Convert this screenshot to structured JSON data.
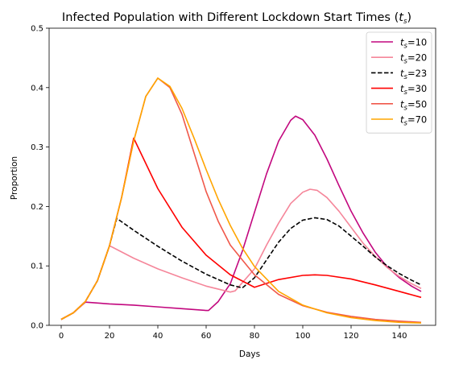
{
  "chart_data": {
    "type": "line",
    "title": "Infected Population with Different Lockdown Start Times",
    "title_math": "t",
    "title_math_sub": "s",
    "xlabel": "Days",
    "ylabel": "Proportion",
    "xlim": [
      -5,
      155
    ],
    "ylim": [
      0,
      0.5
    ],
    "xticks": [
      0,
      20,
      40,
      60,
      80,
      100,
      120,
      140
    ],
    "yticks": [
      0.0,
      0.1,
      0.2,
      0.3,
      0.4,
      0.5
    ],
    "ytick_labels": [
      "0.0",
      "0.1",
      "0.2",
      "0.3",
      "0.4",
      "0.5"
    ],
    "grid": false,
    "legend_position": "top-right",
    "series": [
      {
        "name": "ts=10",
        "label_math": "t",
        "label_sub": "s",
        "label_value": "=10",
        "color": "#c2077e",
        "dash": "solid",
        "points": [
          [
            0,
            0.01
          ],
          [
            5,
            0.021
          ],
          [
            10,
            0.039
          ],
          [
            20,
            0.036
          ],
          [
            30,
            0.034
          ],
          [
            40,
            0.031
          ],
          [
            50,
            0.028
          ],
          [
            60,
            0.025
          ],
          [
            61,
            0.025
          ],
          [
            65,
            0.04
          ],
          [
            70,
            0.07
          ],
          [
            75,
            0.125
          ],
          [
            80,
            0.19
          ],
          [
            85,
            0.255
          ],
          [
            90,
            0.31
          ],
          [
            95,
            0.345
          ],
          [
            97,
            0.352
          ],
          [
            100,
            0.346
          ],
          [
            105,
            0.32
          ],
          [
            110,
            0.28
          ],
          [
            115,
            0.235
          ],
          [
            120,
            0.192
          ],
          [
            125,
            0.155
          ],
          [
            130,
            0.123
          ],
          [
            135,
            0.098
          ],
          [
            140,
            0.08
          ],
          [
            145,
            0.066
          ],
          [
            149,
            0.057
          ]
        ]
      },
      {
        "name": "ts=20",
        "label_math": "t",
        "label_sub": "s",
        "label_value": "=20",
        "color": "#f5869a",
        "dash": "solid",
        "points": [
          [
            0,
            0.01
          ],
          [
            5,
            0.021
          ],
          [
            10,
            0.04
          ],
          [
            15,
            0.075
          ],
          [
            20,
            0.134
          ],
          [
            30,
            0.113
          ],
          [
            40,
            0.095
          ],
          [
            50,
            0.08
          ],
          [
            60,
            0.066
          ],
          [
            70,
            0.056
          ],
          [
            72,
            0.058
          ],
          [
            80,
            0.095
          ],
          [
            85,
            0.135
          ],
          [
            90,
            0.172
          ],
          [
            95,
            0.205
          ],
          [
            100,
            0.224
          ],
          [
            103,
            0.229
          ],
          [
            106,
            0.227
          ],
          [
            110,
            0.215
          ],
          [
            115,
            0.192
          ],
          [
            120,
            0.165
          ],
          [
            125,
            0.138
          ],
          [
            130,
            0.116
          ],
          [
            135,
            0.097
          ],
          [
            140,
            0.082
          ],
          [
            145,
            0.07
          ],
          [
            149,
            0.062
          ]
        ]
      },
      {
        "name": "ts=23",
        "label_math": "t",
        "label_sub": "s",
        "label_value": "=23",
        "color": "#000000",
        "dash": "dashed",
        "points": [
          [
            0,
            0.01
          ],
          [
            5,
            0.021
          ],
          [
            10,
            0.04
          ],
          [
            15,
            0.075
          ],
          [
            20,
            0.134
          ],
          [
            23,
            0.18
          ],
          [
            30,
            0.16
          ],
          [
            40,
            0.133
          ],
          [
            50,
            0.108
          ],
          [
            60,
            0.086
          ],
          [
            70,
            0.068
          ],
          [
            75,
            0.063
          ],
          [
            80,
            0.08
          ],
          [
            85,
            0.11
          ],
          [
            90,
            0.14
          ],
          [
            95,
            0.163
          ],
          [
            100,
            0.177
          ],
          [
            105,
            0.181
          ],
          [
            110,
            0.178
          ],
          [
            115,
            0.167
          ],
          [
            120,
            0.15
          ],
          [
            125,
            0.133
          ],
          [
            130,
            0.115
          ],
          [
            135,
            0.1
          ],
          [
            140,
            0.087
          ],
          [
            145,
            0.076
          ],
          [
            149,
            0.068
          ]
        ]
      },
      {
        "name": "ts=30",
        "label_math": "t",
        "label_sub": "s",
        "label_value": "=30",
        "color": "#ff0000",
        "dash": "solid",
        "points": [
          [
            0,
            0.01
          ],
          [
            5,
            0.021
          ],
          [
            10,
            0.04
          ],
          [
            15,
            0.075
          ],
          [
            20,
            0.134
          ],
          [
            25,
            0.215
          ],
          [
            30,
            0.315
          ],
          [
            40,
            0.23
          ],
          [
            50,
            0.165
          ],
          [
            60,
            0.118
          ],
          [
            70,
            0.085
          ],
          [
            80,
            0.064
          ],
          [
            90,
            0.077
          ],
          [
            100,
            0.084
          ],
          [
            105,
            0.085
          ],
          [
            110,
            0.084
          ],
          [
            120,
            0.078
          ],
          [
            130,
            0.068
          ],
          [
            140,
            0.057
          ],
          [
            149,
            0.047
          ]
        ]
      },
      {
        "name": "ts=50",
        "label_math": "t",
        "label_sub": "s",
        "label_value": "=50",
        "color": "#f0584a",
        "dash": "solid",
        "points": [
          [
            0,
            0.01
          ],
          [
            5,
            0.021
          ],
          [
            10,
            0.04
          ],
          [
            15,
            0.075
          ],
          [
            20,
            0.134
          ],
          [
            25,
            0.215
          ],
          [
            30,
            0.31
          ],
          [
            35,
            0.385
          ],
          [
            40,
            0.416
          ],
          [
            45,
            0.4
          ],
          [
            50,
            0.355
          ],
          [
            55,
            0.29
          ],
          [
            60,
            0.225
          ],
          [
            65,
            0.175
          ],
          [
            70,
            0.135
          ],
          [
            75,
            0.11
          ],
          [
            80,
            0.085
          ],
          [
            90,
            0.052
          ],
          [
            100,
            0.033
          ],
          [
            110,
            0.022
          ],
          [
            120,
            0.015
          ],
          [
            130,
            0.01
          ],
          [
            140,
            0.007
          ],
          [
            149,
            0.005
          ]
        ]
      },
      {
        "name": "ts=70",
        "label_math": "t",
        "label_sub": "s",
        "label_value": "=70",
        "color": "#ffa500",
        "dash": "solid",
        "points": [
          [
            0,
            0.01
          ],
          [
            5,
            0.021
          ],
          [
            10,
            0.04
          ],
          [
            15,
            0.075
          ],
          [
            20,
            0.134
          ],
          [
            25,
            0.215
          ],
          [
            30,
            0.31
          ],
          [
            35,
            0.385
          ],
          [
            40,
            0.416
          ],
          [
            45,
            0.402
          ],
          [
            50,
            0.365
          ],
          [
            55,
            0.315
          ],
          [
            60,
            0.262
          ],
          [
            65,
            0.212
          ],
          [
            70,
            0.168
          ],
          [
            75,
            0.13
          ],
          [
            80,
            0.099
          ],
          [
            90,
            0.057
          ],
          [
            100,
            0.034
          ],
          [
            110,
            0.021
          ],
          [
            120,
            0.013
          ],
          [
            130,
            0.008
          ],
          [
            140,
            0.005
          ],
          [
            149,
            0.004
          ]
        ]
      }
    ]
  }
}
